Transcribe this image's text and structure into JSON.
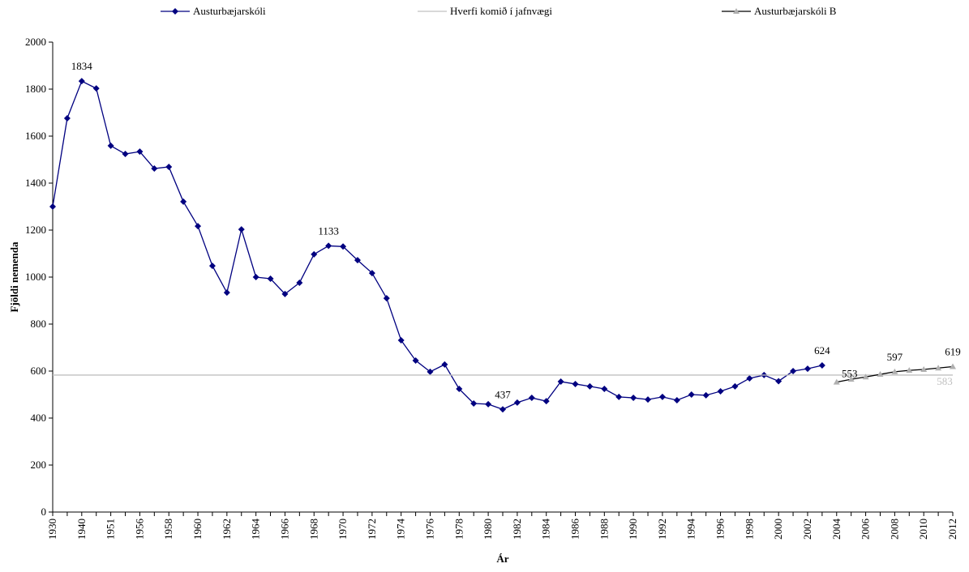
{
  "chart_data": {
    "type": "line",
    "x_label": "Ár",
    "y_label": "Fjöldi nemenda",
    "categories": [
      "1930",
      null,
      "1940",
      null,
      "1951",
      null,
      "1956",
      null,
      "1958",
      null,
      "1960",
      null,
      "1962",
      null,
      "1964",
      null,
      "1966",
      null,
      "1968",
      null,
      "1970",
      null,
      "1972",
      null,
      "1974",
      null,
      "1976",
      null,
      "1978",
      null,
      "1980",
      null,
      "1982",
      null,
      "1984",
      null,
      "1986",
      null,
      "1988",
      null,
      "1990",
      null,
      "1992",
      null,
      "1994",
      null,
      "1996",
      null,
      "1998",
      null,
      "2000",
      null,
      "2002",
      null,
      "2004",
      null,
      "2006",
      null,
      "2008",
      null,
      "2010",
      null,
      "2012"
    ],
    "ylim": [
      0,
      2000
    ],
    "yticks": [
      0,
      200,
      400,
      600,
      800,
      1000,
      1200,
      1400,
      1600,
      1800,
      2000
    ],
    "legend": "top",
    "series": [
      {
        "name": "Austurbæjarskóli",
        "color": "#000080",
        "marker": "diamond",
        "marker_color": "#000080",
        "values": [
          1300,
          1676,
          1834,
          1803,
          1559,
          1524,
          1534,
          1462,
          1469,
          1321,
          1217,
          1048,
          934,
          1203,
          1000,
          993,
          928,
          976,
          1097,
          1133,
          1130,
          1072,
          1017,
          910,
          731,
          645,
          597,
          628,
          524,
          462,
          459,
          437,
          466,
          486,
          472,
          555,
          545,
          535,
          524,
          490,
          486,
          479,
          490,
          476,
          500,
          497,
          514,
          535,
          569,
          583,
          557,
          600,
          610,
          624,
          null,
          null,
          null,
          null,
          null,
          null,
          null,
          null,
          null
        ],
        "value_labels": [
          null,
          null,
          "1834",
          null,
          null,
          null,
          null,
          null,
          null,
          null,
          null,
          null,
          null,
          null,
          null,
          null,
          null,
          null,
          null,
          "1133",
          null,
          null,
          null,
          null,
          null,
          null,
          null,
          null,
          null,
          null,
          null,
          "437",
          null,
          null,
          null,
          null,
          null,
          null,
          null,
          null,
          null,
          null,
          null,
          null,
          null,
          null,
          null,
          null,
          null,
          null,
          null,
          null,
          null,
          "624",
          null,
          null,
          null,
          null,
          null,
          null,
          null,
          null,
          null
        ]
      },
      {
        "name": "Hverfi komið í jafnvægi",
        "color": "#c0c0c0",
        "marker": "none",
        "marker_color": "#c0c0c0",
        "values": [
          583,
          583,
          583,
          583,
          583,
          583,
          583,
          583,
          583,
          583,
          583,
          583,
          583,
          583,
          583,
          583,
          583,
          583,
          583,
          583,
          583,
          583,
          583,
          583,
          583,
          583,
          583,
          583,
          583,
          583,
          583,
          583,
          583,
          583,
          583,
          583,
          583,
          583,
          583,
          583,
          583,
          583,
          583,
          583,
          583,
          583,
          583,
          583,
          583,
          583,
          583,
          583,
          583,
          583,
          583,
          583,
          583,
          583,
          583,
          583,
          583,
          583,
          583
        ],
        "value_labels": [
          null,
          null,
          null,
          null,
          null,
          null,
          null,
          null,
          null,
          null,
          null,
          null,
          null,
          null,
          null,
          null,
          null,
          null,
          null,
          null,
          null,
          null,
          null,
          null,
          null,
          null,
          null,
          null,
          null,
          null,
          null,
          null,
          null,
          null,
          null,
          null,
          null,
          null,
          null,
          null,
          null,
          null,
          null,
          null,
          null,
          null,
          null,
          null,
          null,
          null,
          null,
          null,
          null,
          null,
          null,
          null,
          null,
          null,
          null,
          null,
          null,
          null,
          "583"
        ]
      },
      {
        "name": "Austurbæjarskóli B",
        "color": "#000000",
        "marker": "triangle",
        "marker_color": "#b0b0b0",
        "values": [
          null,
          null,
          null,
          null,
          null,
          null,
          null,
          null,
          null,
          null,
          null,
          null,
          null,
          null,
          null,
          null,
          null,
          null,
          null,
          null,
          null,
          null,
          null,
          null,
          null,
          null,
          null,
          null,
          null,
          null,
          null,
          null,
          null,
          null,
          null,
          null,
          null,
          null,
          null,
          null,
          null,
          null,
          null,
          null,
          null,
          null,
          null,
          null,
          null,
          null,
          null,
          null,
          null,
          null,
          553,
          565,
          575,
          586,
          597,
          603,
          607,
          613,
          619
        ],
        "value_labels": [
          null,
          null,
          null,
          null,
          null,
          null,
          null,
          null,
          null,
          null,
          null,
          null,
          null,
          null,
          null,
          null,
          null,
          null,
          null,
          null,
          null,
          null,
          null,
          null,
          null,
          null,
          null,
          null,
          null,
          null,
          null,
          null,
          null,
          null,
          null,
          null,
          null,
          null,
          null,
          null,
          null,
          null,
          null,
          null,
          null,
          null,
          null,
          null,
          null,
          null,
          null,
          null,
          null,
          null,
          "553",
          null,
          null,
          null,
          "597",
          null,
          null,
          null,
          "619"
        ]
      }
    ]
  }
}
